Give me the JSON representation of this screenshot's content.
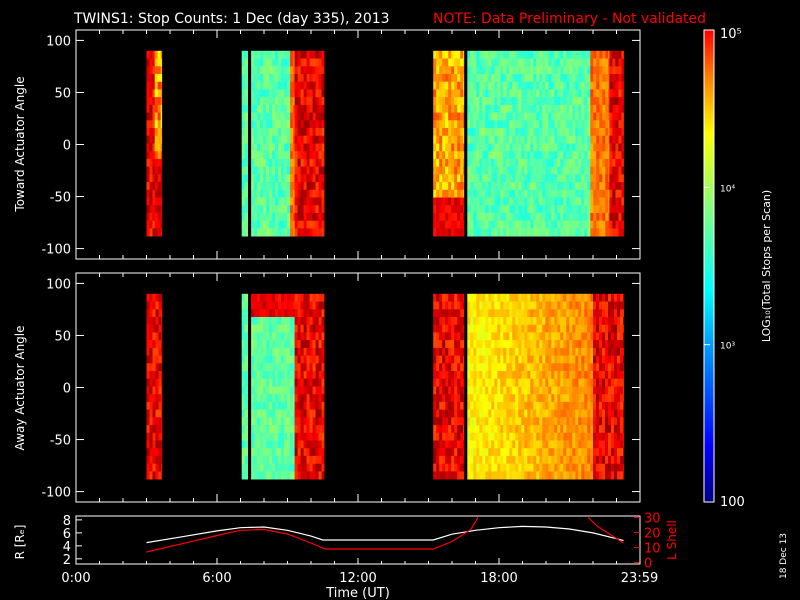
{
  "figure": {
    "title": "TWINS1: Stop Counts:  1 Dec (day 335), 2013",
    "note": "NOTE: Data Preliminary - Not validated",
    "date_stamp": "18 Dec 13"
  },
  "colors": {
    "background": "#000000",
    "axes": "#ffffff",
    "note": "#ff0000",
    "r_line": "#ffffff",
    "l_shell_line": "#ff0000"
  },
  "chart_data": [
    {
      "type": "heatmap",
      "id": "toward",
      "ylabel": "Toward Actuator Angle",
      "xlim": [
        0,
        24
      ],
      "ylim": [
        -110,
        110
      ],
      "yticks": [
        100,
        50,
        0,
        -50,
        -100
      ],
      "segments": [
        {
          "t0": 3.0,
          "t1": 3.35,
          "pattern": "hot"
        },
        {
          "t0": 3.35,
          "t1": 3.65,
          "pattern": "hot_low"
        },
        {
          "t0": 7.05,
          "t1": 7.3,
          "pattern": "cyan"
        },
        {
          "t0": 7.45,
          "t1": 9.3,
          "pattern": "cyan"
        },
        {
          "t0": 9.3,
          "t1": 10.55,
          "pattern": "hot"
        },
        {
          "t0": 15.2,
          "t1": 16.5,
          "pattern": "warm_low"
        },
        {
          "t0": 16.65,
          "t1": 22.7,
          "pattern": "cyan"
        },
        {
          "t0": 22.7,
          "t1": 23.3,
          "pattern": "hot"
        }
      ],
      "yrange": [
        -88,
        90
      ]
    },
    {
      "type": "heatmap",
      "id": "away",
      "ylabel": "Away Actuator Angle",
      "xlim": [
        0,
        24
      ],
      "ylim": [
        -110,
        110
      ],
      "yticks": [
        100,
        50,
        0,
        -50,
        -100
      ],
      "segments": [
        {
          "t0": 3.0,
          "t1": 3.65,
          "pattern": "hot"
        },
        {
          "t0": 7.05,
          "t1": 7.3,
          "pattern": "cyan"
        },
        {
          "t0": 7.45,
          "t1": 9.3,
          "pattern": "cyan_top"
        },
        {
          "t0": 9.3,
          "t1": 10.55,
          "pattern": "hot"
        },
        {
          "t0": 15.2,
          "t1": 16.5,
          "pattern": "hot"
        },
        {
          "t0": 16.65,
          "t1": 22.0,
          "pattern": "warm"
        },
        {
          "t0": 22.0,
          "t1": 23.3,
          "pattern": "hot"
        }
      ],
      "yrange": [
        -88,
        90
      ]
    },
    {
      "type": "line",
      "id": "orbit",
      "ylabel_left": "R [Rₑ]",
      "ylabel_right": "L Shell",
      "xlabel": "Time (UT)",
      "xticks": [
        "0:00",
        "6:00",
        "12:00",
        "18:00",
        "23:59"
      ],
      "xtick_values": [
        0,
        6,
        12,
        18,
        23.98
      ],
      "xlim": [
        0,
        24
      ],
      "left_ylim": [
        1.2,
        8.6
      ],
      "left_yticks": [
        8,
        6,
        4,
        2
      ],
      "right_ylim": [
        -1,
        31
      ],
      "right_yticks": [
        30,
        20,
        10,
        0
      ],
      "series": [
        {
          "axis": "left",
          "color": "#ffffff",
          "x": [
            3.0,
            4.5,
            6.0,
            7.0,
            8.0,
            9.0,
            10.0,
            10.5,
            12.0,
            14.0,
            15.2,
            16.0,
            17.0,
            18.0,
            19.0,
            20.0,
            21.0,
            22.0,
            23.0,
            23.3
          ],
          "y": [
            4.5,
            5.4,
            6.3,
            6.8,
            6.9,
            6.4,
            5.5,
            4.9,
            4.9,
            4.9,
            4.9,
            5.8,
            6.4,
            6.8,
            7.0,
            6.9,
            6.6,
            6.0,
            5.1,
            4.8
          ]
        },
        {
          "axis": "right",
          "color": "#ff0000",
          "x": [
            3.0,
            4.5,
            6.0,
            7.0,
            8.0,
            9.0,
            10.0,
            10.6,
            12.0,
            14.0,
            15.2,
            16.0,
            16.8,
            17.1,
            null,
            21.8,
            22.2,
            23.0,
            23.3
          ],
          "y": [
            7,
            12.5,
            18,
            21.5,
            22,
            19,
            13,
            9,
            9,
            9,
            9,
            14,
            22,
            30,
            null,
            30,
            24,
            16,
            13
          ]
        }
      ]
    }
  ],
  "colorbar": {
    "label": "LOG₁₀(Total Stops per Scan)",
    "tick_labels": [
      "10⁵",
      "10⁴",
      "10³",
      "100"
    ],
    "log_ticks": [
      5,
      4,
      3,
      2
    ],
    "range": [
      2,
      5
    ]
  }
}
